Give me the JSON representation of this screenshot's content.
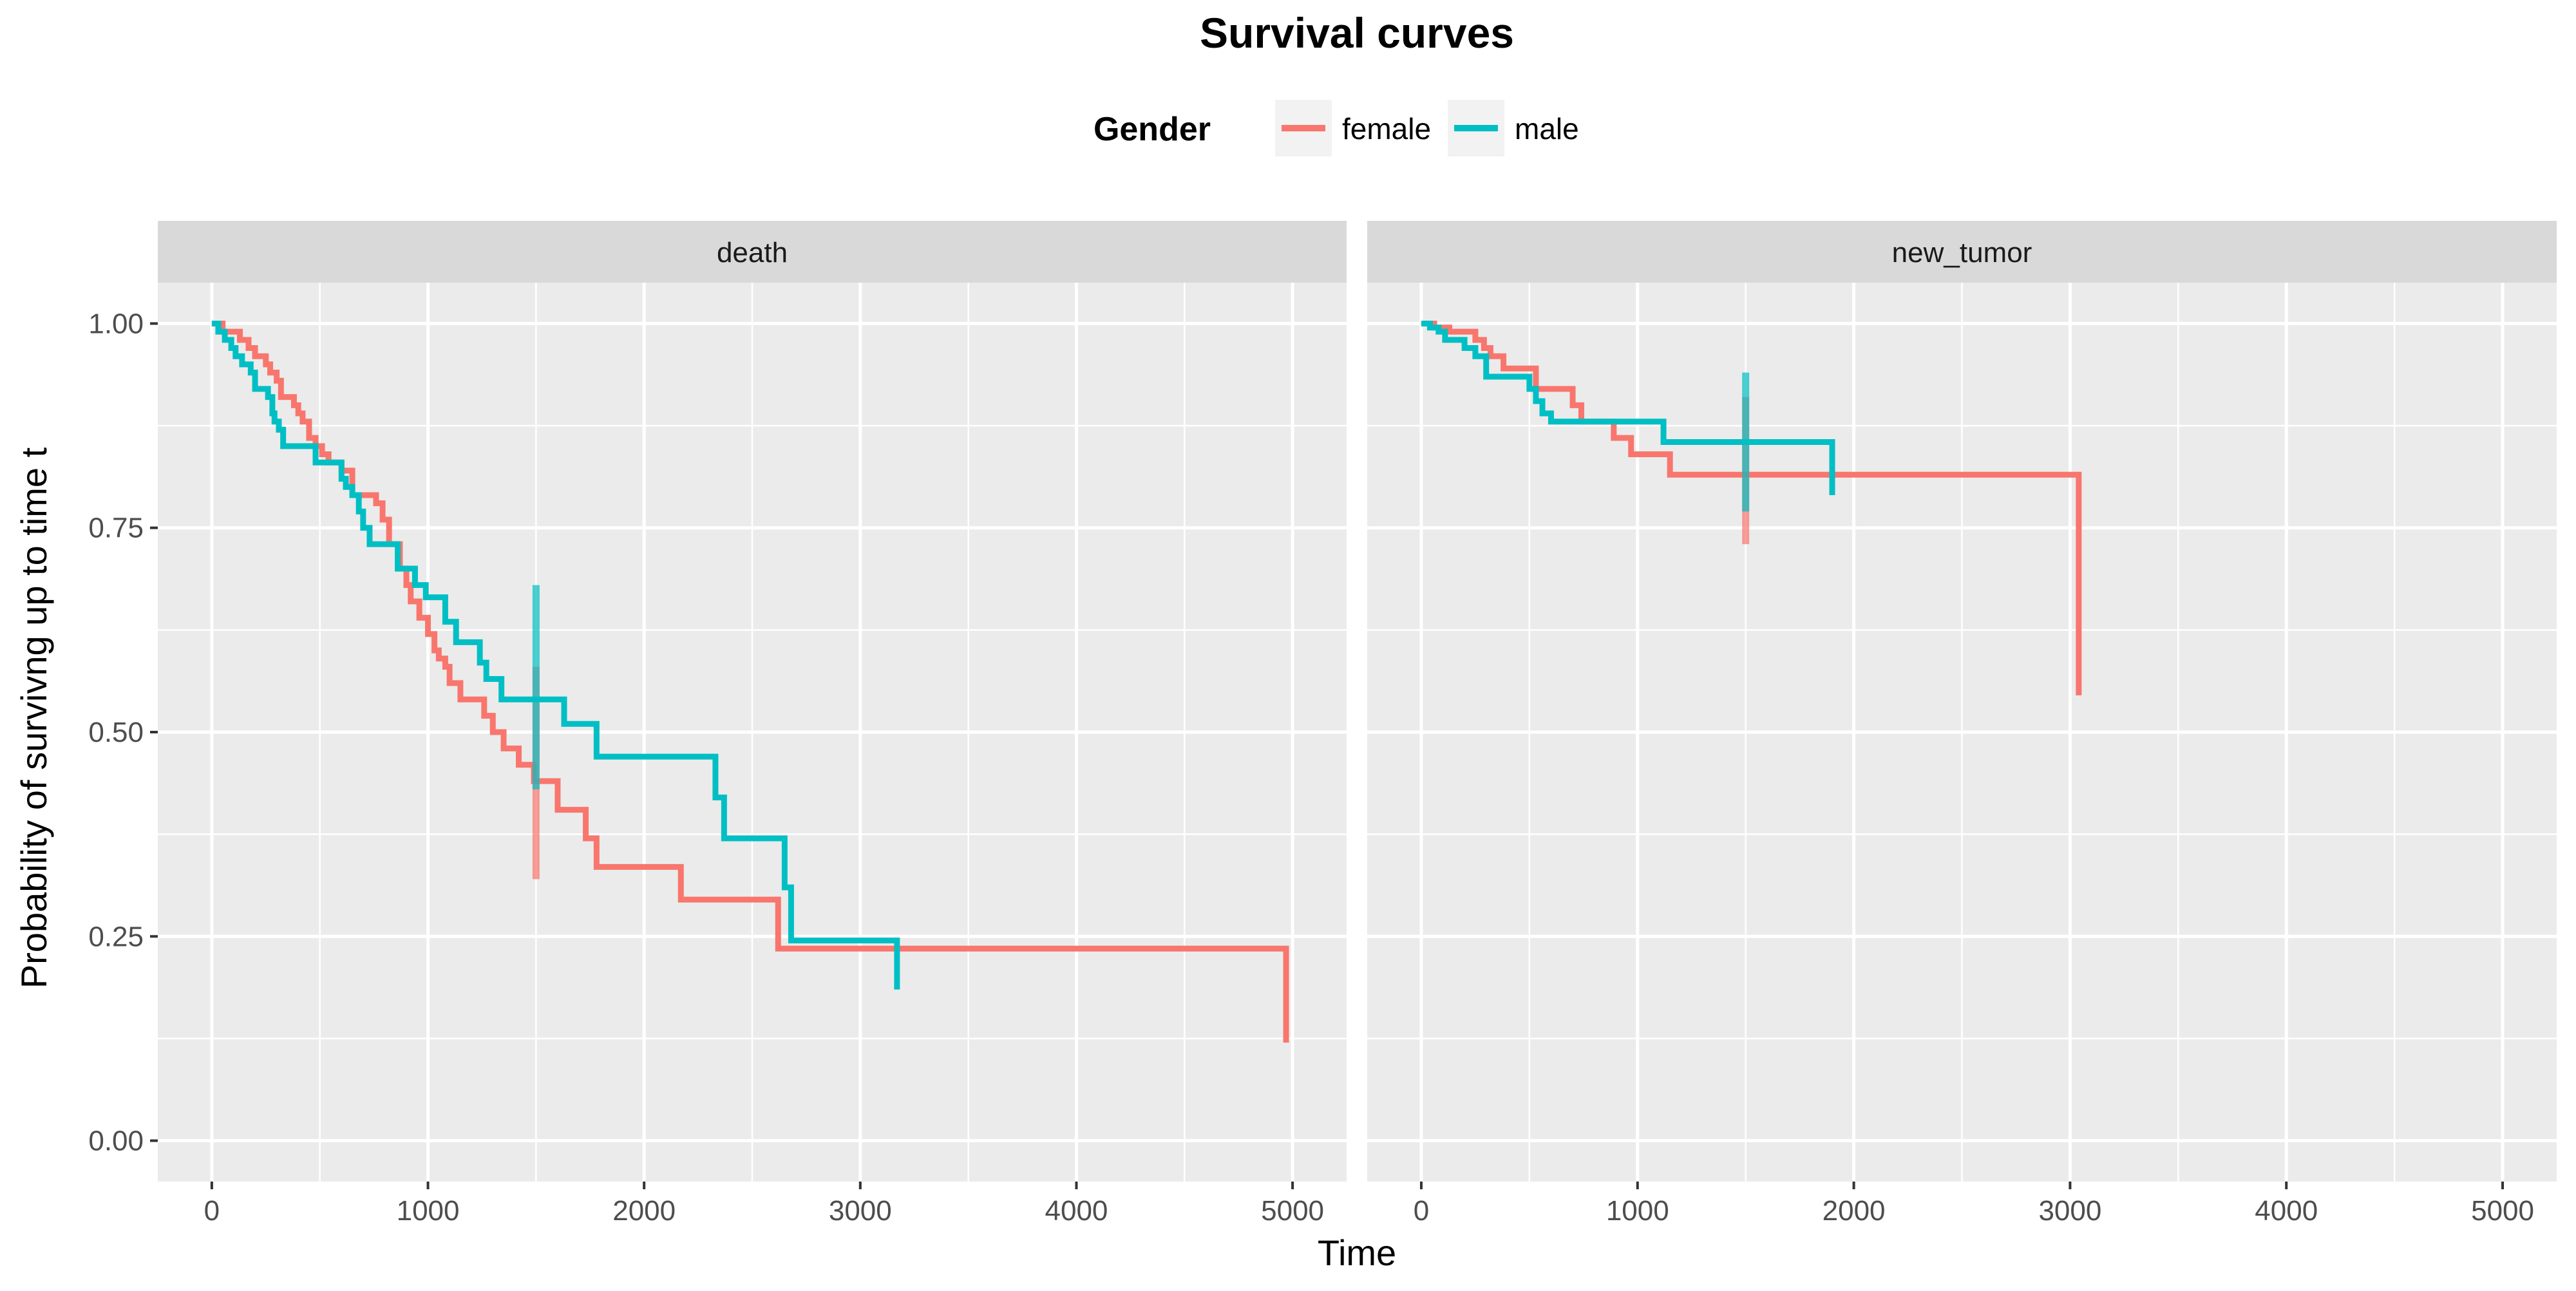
{
  "chart_data": {
    "type": "line",
    "title": "Survival curves",
    "xlabel": "Time",
    "ylabel": "Probability of survivng up to time t",
    "legend": {
      "title": "Gender",
      "position": "top",
      "entries": [
        {
          "name": "female",
          "color": "#F8766D"
        },
        {
          "name": "male",
          "color": "#00BFC4"
        }
      ]
    },
    "xlim": [
      -250,
      5250
    ],
    "ylim": [
      -0.05,
      1.05
    ],
    "x_ticks": [
      0,
      1000,
      2000,
      3000,
      4000,
      5000
    ],
    "x_tick_labels": [
      "0",
      "1000",
      "2000",
      "3000",
      "4000",
      "5000"
    ],
    "y_ticks": [
      0,
      0.25,
      0.5,
      0.75,
      1
    ],
    "y_tick_labels": [
      "0.00",
      "0.25",
      "0.50",
      "0.75",
      "1.00"
    ],
    "grid": true,
    "panels": [
      {
        "facet": "death",
        "series": [
          {
            "name": "female",
            "color": "#F8766D",
            "steps": [
              [
                0,
                1.0
              ],
              [
                50,
                0.99
              ],
              [
                130,
                0.98
              ],
              [
                170,
                0.97
              ],
              [
                200,
                0.96
              ],
              [
                250,
                0.95
              ],
              [
                270,
                0.94
              ],
              [
                300,
                0.93
              ],
              [
                320,
                0.91
              ],
              [
                380,
                0.9
              ],
              [
                400,
                0.89
              ],
              [
                420,
                0.88
              ],
              [
                450,
                0.86
              ],
              [
                480,
                0.85
              ],
              [
                510,
                0.84
              ],
              [
                540,
                0.83
              ],
              [
                600,
                0.82
              ],
              [
                650,
                0.79
              ],
              [
                760,
                0.78
              ],
              [
                790,
                0.76
              ],
              [
                820,
                0.73
              ],
              [
                870,
                0.7
              ],
              [
                900,
                0.68
              ],
              [
                920,
                0.66
              ],
              [
                960,
                0.64
              ],
              [
                1000,
                0.62
              ],
              [
                1030,
                0.6
              ],
              [
                1050,
                0.59
              ],
              [
                1080,
                0.58
              ],
              [
                1100,
                0.56
              ],
              [
                1150,
                0.54
              ],
              [
                1260,
                0.52
              ],
              [
                1300,
                0.5
              ],
              [
                1350,
                0.48
              ],
              [
                1420,
                0.46
              ],
              [
                1490,
                0.44
              ],
              [
                1600,
                0.405
              ],
              [
                1730,
                0.37
              ],
              [
                1780,
                0.335
              ],
              [
                2170,
                0.295
              ],
              [
                2620,
                0.235
              ],
              [
                4970,
                0.12
              ]
            ],
            "censor_mark": {
              "x": 1500,
              "y_low": 0.32,
              "y_high": 0.58
            }
          },
          {
            "name": "male",
            "color": "#00BFC4",
            "steps": [
              [
                0,
                1.0
              ],
              [
                30,
                0.99
              ],
              [
                60,
                0.98
              ],
              [
                90,
                0.97
              ],
              [
                110,
                0.96
              ],
              [
                140,
                0.95
              ],
              [
                180,
                0.94
              ],
              [
                200,
                0.92
              ],
              [
                260,
                0.91
              ],
              [
                280,
                0.89
              ],
              [
                290,
                0.88
              ],
              [
                310,
                0.87
              ],
              [
                330,
                0.85
              ],
              [
                480,
                0.83
              ],
              [
                600,
                0.81
              ],
              [
                620,
                0.8
              ],
              [
                650,
                0.79
              ],
              [
                680,
                0.77
              ],
              [
                700,
                0.75
              ],
              [
                730,
                0.73
              ],
              [
                860,
                0.7
              ],
              [
                940,
                0.68
              ],
              [
                990,
                0.665
              ],
              [
                1080,
                0.635
              ],
              [
                1130,
                0.61
              ],
              [
                1240,
                0.585
              ],
              [
                1270,
                0.565
              ],
              [
                1340,
                0.54
              ],
              [
                1630,
                0.51
              ],
              [
                1780,
                0.47
              ],
              [
                2330,
                0.42
              ],
              [
                2370,
                0.37
              ],
              [
                2650,
                0.31
              ],
              [
                2680,
                0.245
              ],
              [
                3170,
                0.185
              ]
            ],
            "censor_mark": {
              "x": 1500,
              "y_low": 0.43,
              "y_high": 0.68
            }
          }
        ]
      },
      {
        "facet": "new_tumor",
        "series": [
          {
            "name": "female",
            "color": "#F8766D",
            "steps": [
              [
                0,
                1.0
              ],
              [
                60,
                0.995
              ],
              [
                130,
                0.99
              ],
              [
                250,
                0.98
              ],
              [
                290,
                0.97
              ],
              [
                320,
                0.96
              ],
              [
                380,
                0.945
              ],
              [
                530,
                0.92
              ],
              [
                700,
                0.9
              ],
              [
                740,
                0.88
              ],
              [
                890,
                0.86
              ],
              [
                970,
                0.84
              ],
              [
                1150,
                0.815
              ],
              [
                3040,
                0.545
              ]
            ],
            "censor_mark": {
              "x": 1500,
              "y_low": 0.73,
              "y_high": 0.91
            }
          },
          {
            "name": "male",
            "color": "#00BFC4",
            "steps": [
              [
                0,
                1.0
              ],
              [
                40,
                0.995
              ],
              [
                80,
                0.99
              ],
              [
                110,
                0.98
              ],
              [
                200,
                0.97
              ],
              [
                250,
                0.96
              ],
              [
                300,
                0.935
              ],
              [
                500,
                0.92
              ],
              [
                530,
                0.905
              ],
              [
                560,
                0.89
              ],
              [
                600,
                0.88
              ],
              [
                1120,
                0.855
              ],
              [
                1900,
                0.79
              ]
            ],
            "censor_mark": {
              "x": 1500,
              "y_low": 0.77,
              "y_high": 0.94
            }
          }
        ]
      }
    ]
  }
}
